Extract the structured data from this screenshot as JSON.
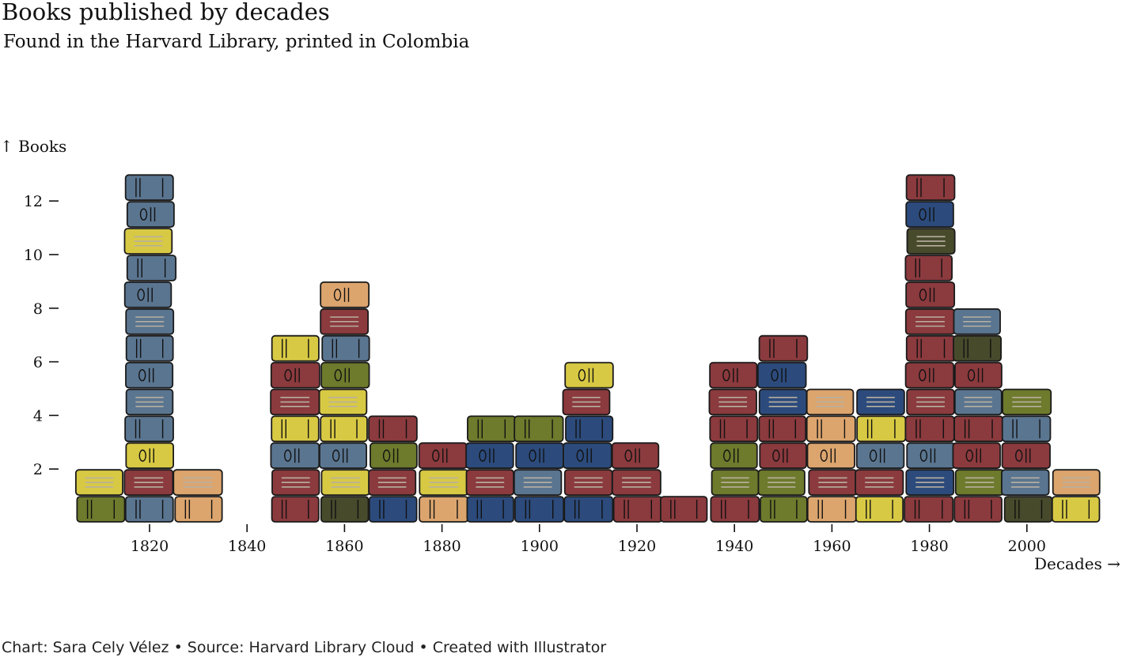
{
  "title": "Books published by decades",
  "subtitle": "Found in the Harvard Library, printed in Colombia",
  "caption": "Chart: Sara Cely Vélez • Source: Harvard Library Cloud • Created with Illustrator",
  "colors": {
    "steel-blue": "#5a7590",
    "navy": "#2c4b7c",
    "maroon": "#8b3a3e",
    "olive": "#6e7a2c",
    "dark-olive": "#484a2c",
    "mustard": "#d8c944",
    "tan": "#dca56e",
    "outline": "#1a1a1a"
  },
  "chart_data": {
    "type": "bar",
    "title": "Books published by decades",
    "subtitle": "Found in the Harvard Library, printed in Colombia",
    "xlabel": "Decades →",
    "ylabel": "↑ Books",
    "x_ticks": [
      1820,
      1840,
      1860,
      1880,
      1900,
      1920,
      1940,
      1960,
      1980,
      2000
    ],
    "y_ticks": [
      2,
      4,
      6,
      8,
      10,
      12
    ],
    "xlim": [
      1805,
      2015
    ],
    "ylim": [
      0,
      13
    ],
    "grid": false,
    "x": [
      1810,
      1820,
      1830,
      1850,
      1860,
      1870,
      1880,
      1890,
      1900,
      1910,
      1920,
      1930,
      1940,
      1950,
      1960,
      1970,
      1980,
      1990,
      2000,
      2010
    ],
    "values": [
      2,
      13,
      2,
      7,
      9,
      4,
      3,
      4,
      4,
      6,
      3,
      1,
      6,
      7,
      5,
      5,
      13,
      8,
      5,
      2
    ],
    "stacks": [
      [
        "olive",
        "mustard"
      ],
      [
        "steel-blue",
        "maroon",
        "mustard",
        "steel-blue",
        "steel-blue",
        "steel-blue",
        "steel-blue",
        "steel-blue",
        "steel-blue",
        "steel-blue",
        "mustard",
        "steel-blue",
        "steel-blue"
      ],
      [
        "tan",
        "tan"
      ],
      [
        "maroon",
        "maroon",
        "steel-blue",
        "mustard",
        "maroon",
        "maroon",
        "mustard"
      ],
      [
        "dark-olive",
        "mustard",
        "steel-blue",
        "mustard",
        "mustard",
        "olive",
        "steel-blue",
        "maroon",
        "tan"
      ],
      [
        "navy",
        "maroon",
        "olive",
        "maroon"
      ],
      [
        "tan",
        "mustard",
        "maroon"
      ],
      [
        "navy",
        "maroon",
        "navy",
        "olive"
      ],
      [
        "navy",
        "steel-blue",
        "navy",
        "olive"
      ],
      [
        "navy",
        "maroon",
        "navy",
        "navy",
        "maroon",
        "mustard"
      ],
      [
        "maroon",
        "maroon",
        "maroon"
      ],
      [
        "maroon"
      ],
      [
        "maroon",
        "olive",
        "olive",
        "maroon",
        "maroon",
        "maroon"
      ],
      [
        "olive",
        "olive",
        "maroon",
        "maroon",
        "navy",
        "navy",
        "maroon"
      ],
      [
        "tan",
        "maroon",
        "tan",
        "tan",
        "tan"
      ],
      [
        "mustard",
        "maroon",
        "steel-blue",
        "mustard",
        "navy"
      ],
      [
        "maroon",
        "navy",
        "steel-blue",
        "maroon",
        "maroon",
        "maroon",
        "maroon",
        "maroon",
        "maroon",
        "maroon",
        "dark-olive",
        "navy",
        "maroon"
      ],
      [
        "maroon",
        "olive",
        "maroon",
        "maroon",
        "steel-blue",
        "maroon",
        "dark-olive",
        "steel-blue"
      ],
      [
        "dark-olive",
        "steel-blue",
        "maroon",
        "steel-blue",
        "olive"
      ],
      [
        "mustard",
        "tan"
      ]
    ]
  }
}
